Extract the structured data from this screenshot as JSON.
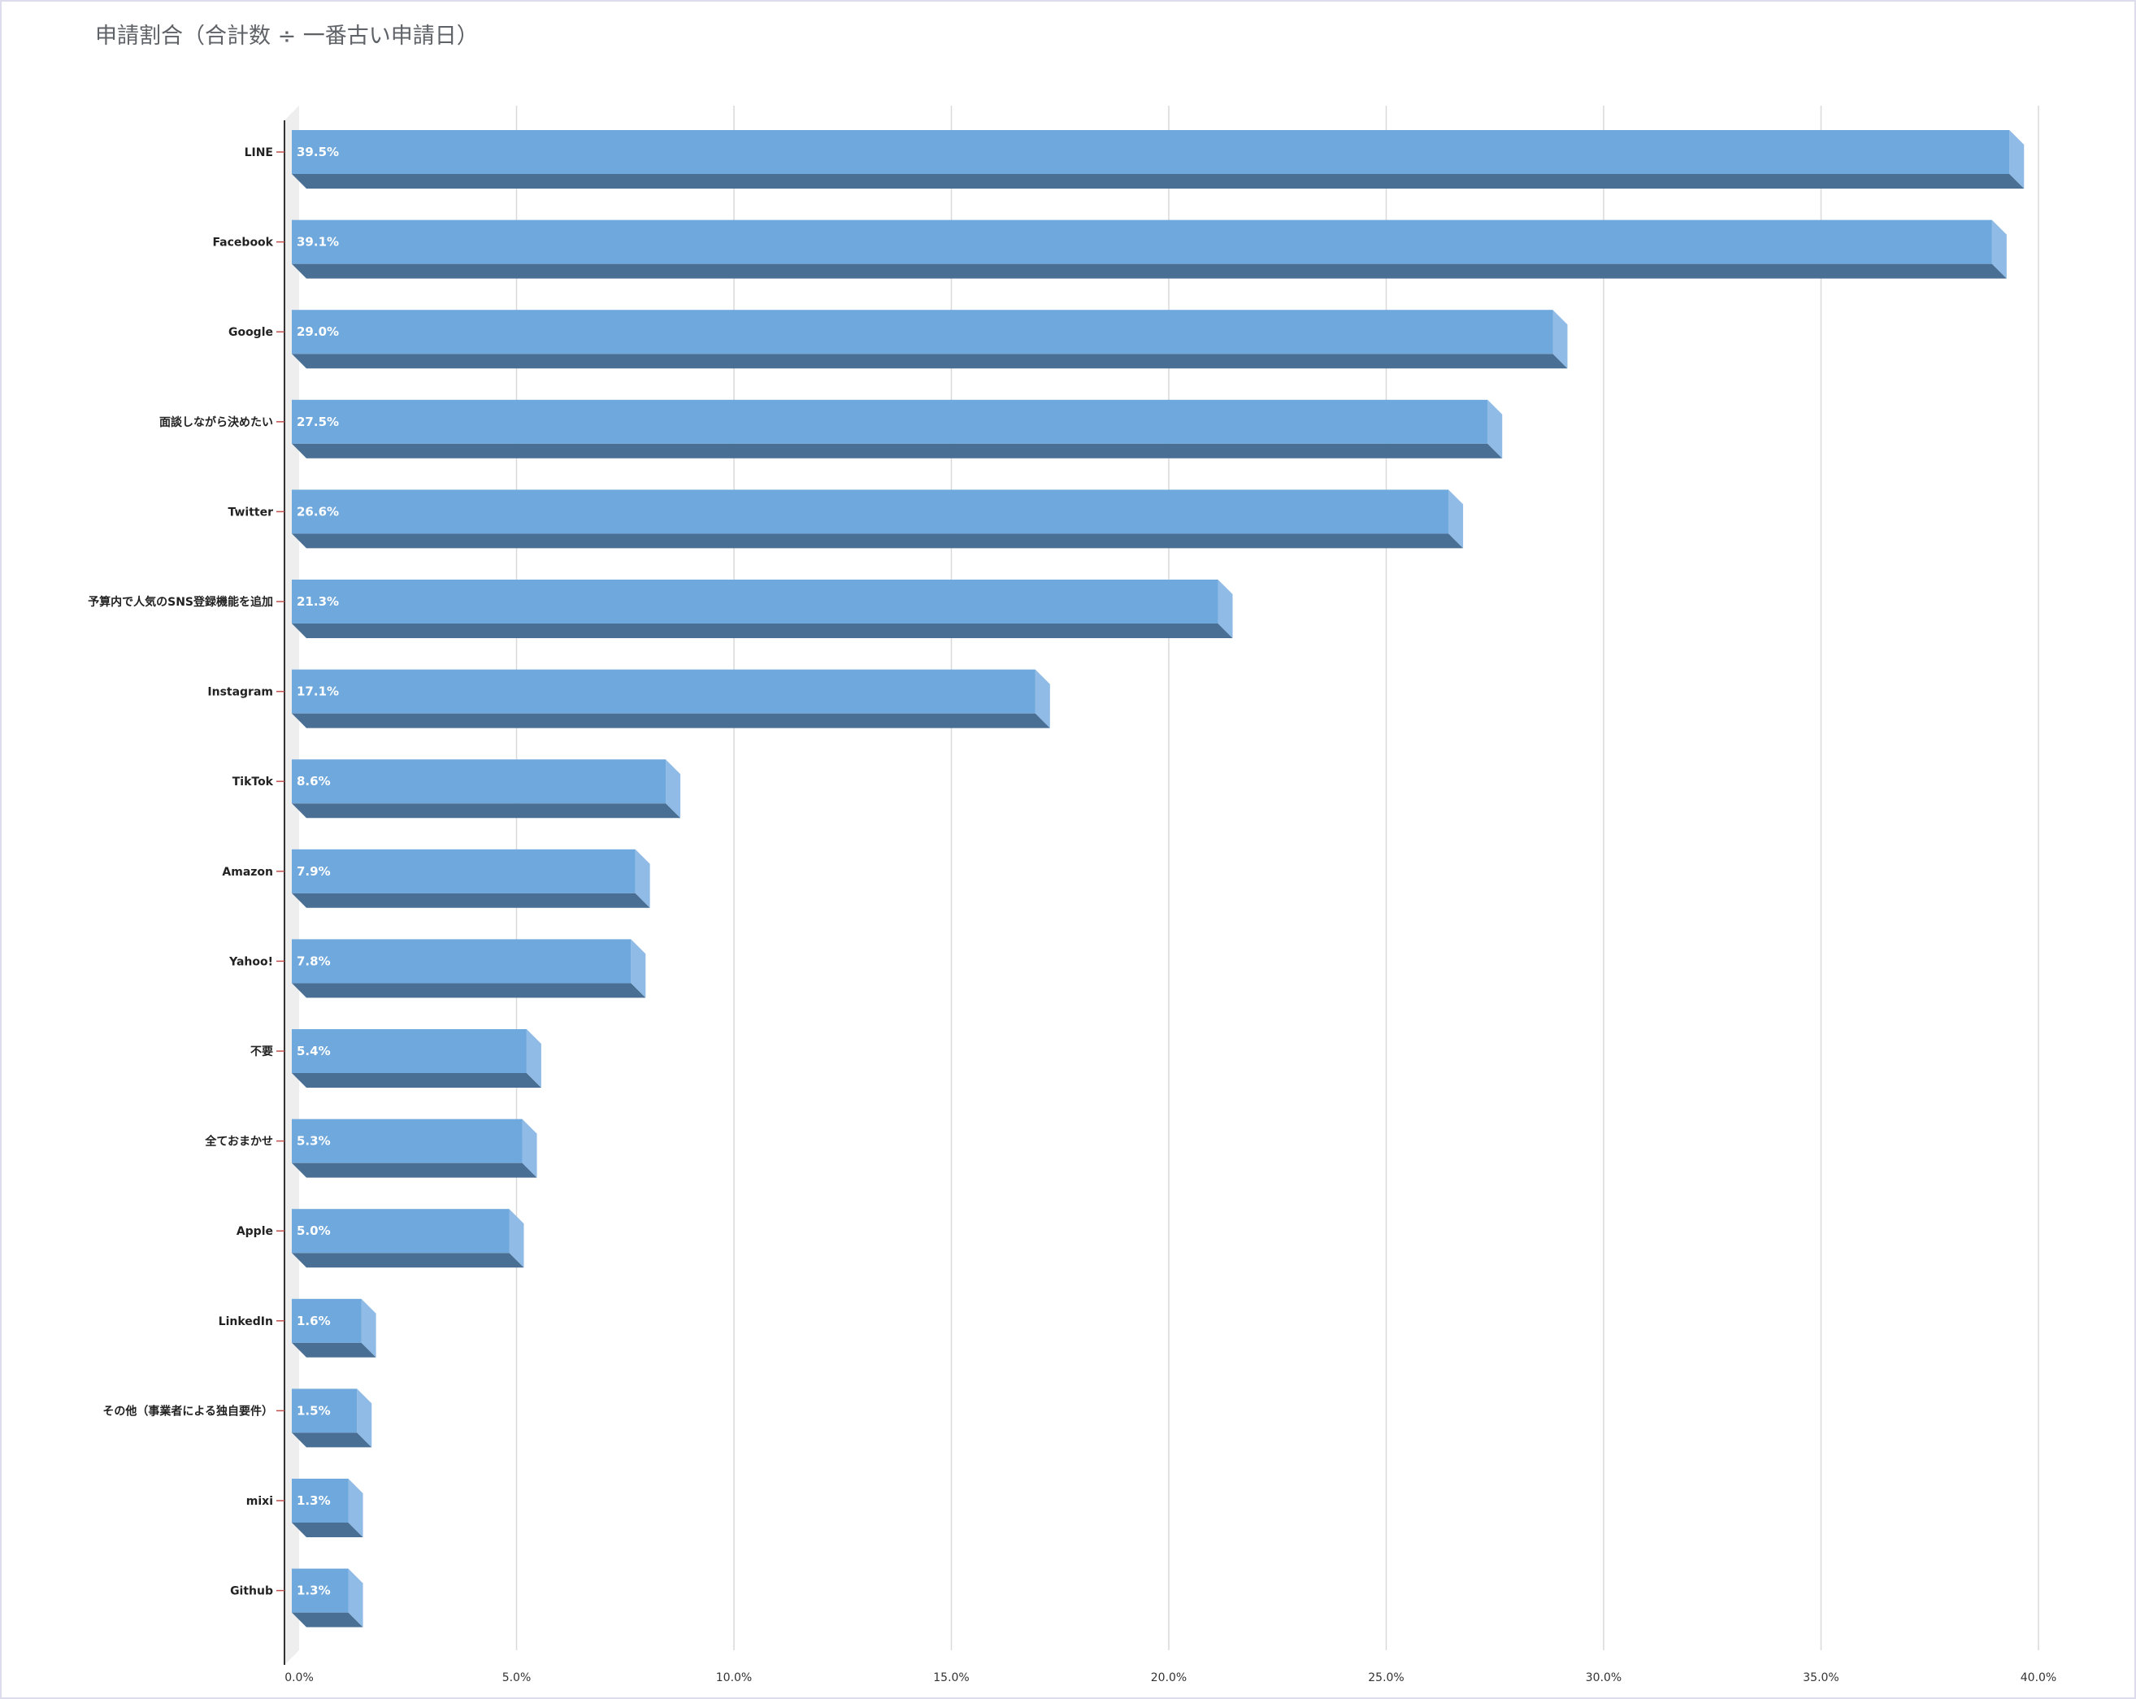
{
  "chart_data": {
    "type": "bar",
    "orientation": "horizontal",
    "title": "申請割合（合計数 ÷ 一番古い申請日）",
    "categories": [
      "LINE",
      "Facebook",
      "Google",
      "面談しながら決めたい",
      "Twitter",
      "予算内で人気のSNS登録機能を追加",
      "Instagram",
      "TikTok",
      "Amazon",
      "Yahoo!",
      "不要",
      "全ておまかせ",
      "Apple",
      "LinkedIn",
      "その他（事業者による独自要件）",
      "mixi",
      "Github"
    ],
    "values": [
      39.5,
      39.1,
      29.0,
      27.5,
      26.6,
      21.3,
      17.1,
      8.6,
      7.9,
      7.8,
      5.4,
      5.3,
      5.0,
      1.6,
      1.5,
      1.3,
      1.3
    ],
    "value_labels": [
      "39.5%",
      "39.1%",
      "29.0%",
      "27.5%",
      "26.6%",
      "21.3%",
      "17.1%",
      "8.6%",
      "7.9%",
      "7.8%",
      "5.4%",
      "5.3%",
      "5.0%",
      "1.6%",
      "1.5%",
      "1.3%",
      "1.3%"
    ],
    "x_ticks": [
      "0.0%",
      "5.0%",
      "10.0%",
      "15.0%",
      "20.0%",
      "25.0%",
      "30.0%",
      "35.0%",
      "40.0%"
    ],
    "xlim": [
      0,
      40
    ],
    "grid": true,
    "style": "3d",
    "colors": {
      "bar_front": "#6fa8dc",
      "bar_side": "#8fbbe6",
      "bar_bottom": "#4a6f94",
      "grid": "#d9d9d9",
      "axis": "#333333",
      "tick_mark": "#c0504d"
    }
  }
}
